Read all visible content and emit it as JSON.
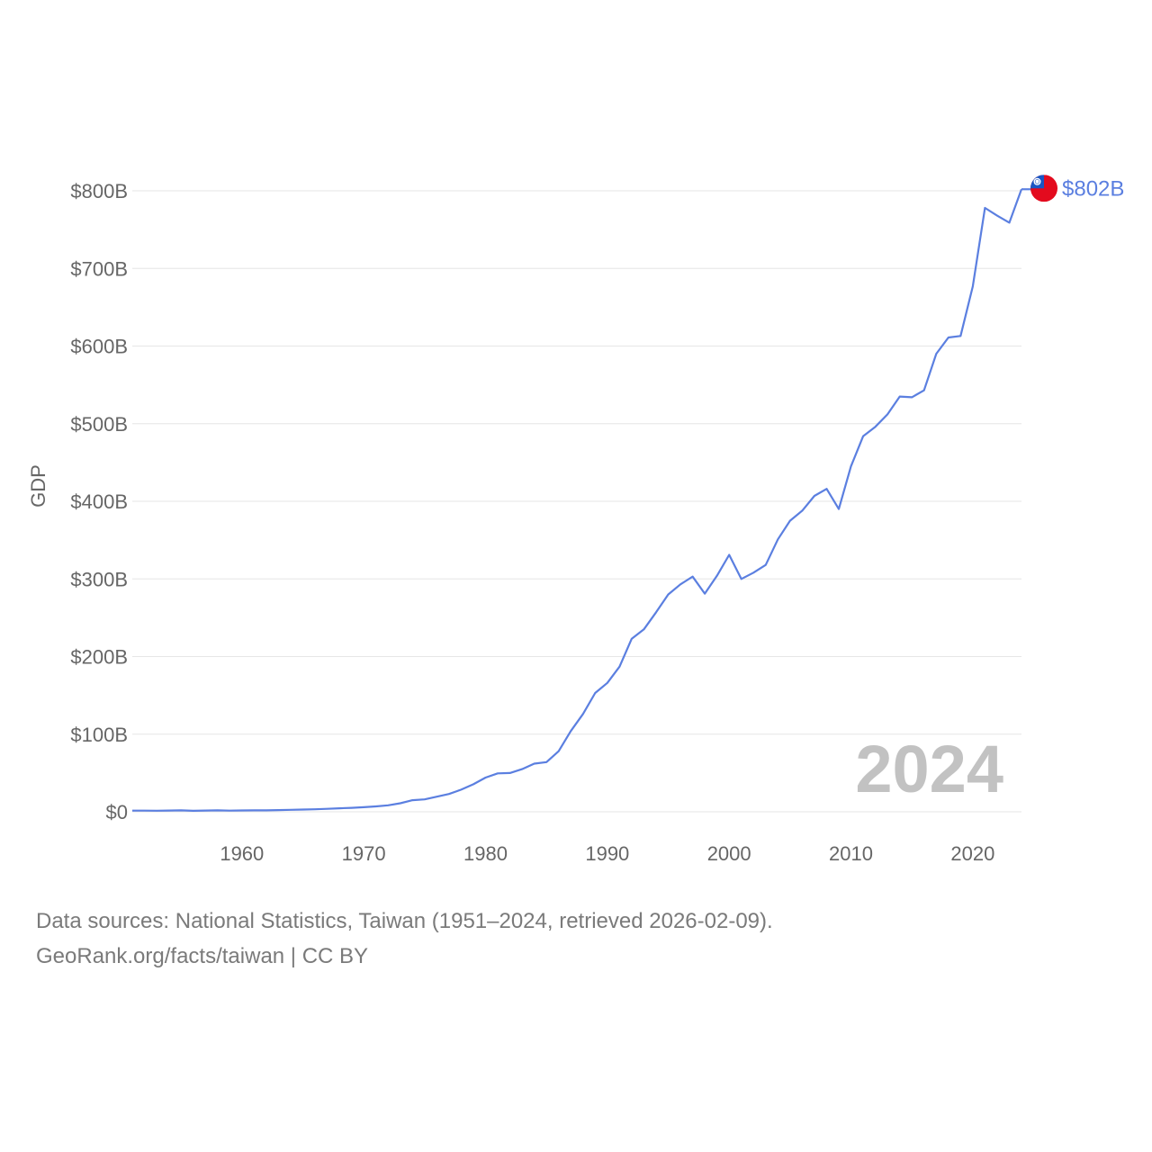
{
  "chart_data": {
    "type": "line",
    "title": "",
    "xlabel": "",
    "ylabel": "GDP",
    "xlim": [
      1951,
      2024
    ],
    "ylim": [
      0,
      800
    ],
    "y_unit": "billion USD",
    "y_ticks": [
      {
        "value": 0,
        "label": "$0"
      },
      {
        "value": 100,
        "label": "$100B"
      },
      {
        "value": 200,
        "label": "$200B"
      },
      {
        "value": 300,
        "label": "$300B"
      },
      {
        "value": 400,
        "label": "$400B"
      },
      {
        "value": 500,
        "label": "$500B"
      },
      {
        "value": 600,
        "label": "$600B"
      },
      {
        "value": 700,
        "label": "$700B"
      },
      {
        "value": 800,
        "label": "$800B"
      }
    ],
    "x_ticks": [
      {
        "value": 1960,
        "label": "1960"
      },
      {
        "value": 1970,
        "label": "1970"
      },
      {
        "value": 1980,
        "label": "1980"
      },
      {
        "value": 1990,
        "label": "1990"
      },
      {
        "value": 2000,
        "label": "2000"
      },
      {
        "value": 2010,
        "label": "2010"
      },
      {
        "value": 2020,
        "label": "2020"
      }
    ],
    "series": [
      {
        "name": "Taiwan",
        "color": "#5b7fe0",
        "end_label": "$802B",
        "x": [
          1951,
          1952,
          1953,
          1954,
          1955,
          1956,
          1957,
          1958,
          1959,
          1960,
          1961,
          1962,
          1963,
          1964,
          1965,
          1966,
          1967,
          1968,
          1969,
          1970,
          1971,
          1972,
          1973,
          1974,
          1975,
          1976,
          1977,
          1978,
          1979,
          1980,
          1981,
          1982,
          1983,
          1984,
          1985,
          1986,
          1987,
          1988,
          1989,
          1990,
          1991,
          1992,
          1993,
          1994,
          1995,
          1996,
          1997,
          1998,
          1999,
          2000,
          2001,
          2002,
          2003,
          2004,
          2005,
          2006,
          2007,
          2008,
          2009,
          2010,
          2011,
          2012,
          2013,
          2014,
          2015,
          2016,
          2017,
          2018,
          2019,
          2020,
          2021,
          2022,
          2023,
          2024
        ],
        "values": [
          1.5,
          1.5,
          1.4,
          1.6,
          1.8,
          1.3,
          1.6,
          1.8,
          1.5,
          1.7,
          1.8,
          1.9,
          2.2,
          2.6,
          2.9,
          3.3,
          3.8,
          4.5,
          5.1,
          5.9,
          6.9,
          8.4,
          11,
          15,
          16,
          19.5,
          23,
          28.5,
          35.5,
          44,
          49.5,
          50,
          55,
          62,
          64,
          78,
          104,
          126,
          153,
          166,
          187,
          223,
          235,
          257,
          280,
          293,
          303,
          281,
          304,
          331,
          300,
          308,
          318,
          351,
          375,
          388,
          407,
          416,
          390,
          445,
          484,
          496,
          512,
          535,
          534,
          543,
          590,
          611,
          613,
          677,
          778,
          768,
          759,
          802
        ]
      }
    ],
    "annotation_year": "2024"
  },
  "footer": {
    "sources": "Data sources: National Statistics, Taiwan (1951–2024, retrieved 2026-02-09).",
    "credit": "GeoRank.org/facts/taiwan | CC BY"
  },
  "flag": {
    "icon": "taiwan-flag-icon",
    "red": "#e30b1e",
    "blue": "#1a56c4"
  }
}
